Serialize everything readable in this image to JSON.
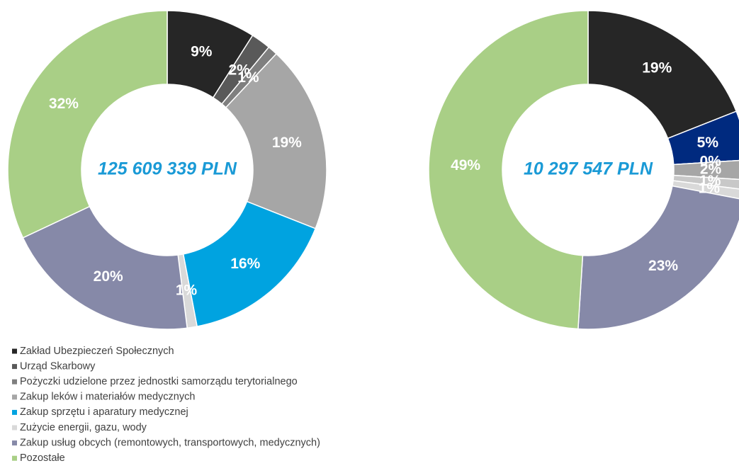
{
  "charts": [
    {
      "chart_data": {
        "type": "pie",
        "center_label": "125 609 339 PLN",
        "categories": [
          "Zakład Ubezpieczeń Społecznych",
          "Urząd Skarbowy",
          "Pożyczki udzielone przez jednostki samorządu terytorialnego",
          "Zakup leków i materiałów medycznych",
          "Zakup sprzętu i aparatury medycznej",
          "Zużycie energii, gazu, wody",
          "Zakup usług obcych (remontowych, transportowych, medycznych)",
          "Pozostałe"
        ],
        "values": [
          9,
          2,
          1,
          19,
          16,
          1,
          20,
          32
        ],
        "value_labels": [
          "9%",
          "2%",
          "1%",
          "19%",
          "16%",
          "1%",
          "20%",
          "32%"
        ],
        "colors": [
          "#262626",
          "#595959",
          "#7f7f7f",
          "#a6a6a6",
          "#00a3e0",
          "#d9d9d9",
          "#8689a8",
          "#a9cf86"
        ]
      }
    },
    {
      "chart_data": {
        "type": "pie",
        "center_label": "10 297 547 PLN",
        "values": [
          19,
          5,
          0,
          2,
          1,
          1,
          23,
          49
        ],
        "value_labels": [
          "19%",
          "5%",
          "0%",
          "2%",
          "1%",
          "1%",
          "23%",
          "49%"
        ],
        "colors": [
          "#262626",
          "#002a7f",
          "#7f7f7f",
          "#a6a6a6",
          "#c8c8c8",
          "#d9d9d9",
          "#8689a8",
          "#a9cf86"
        ]
      }
    }
  ]
}
